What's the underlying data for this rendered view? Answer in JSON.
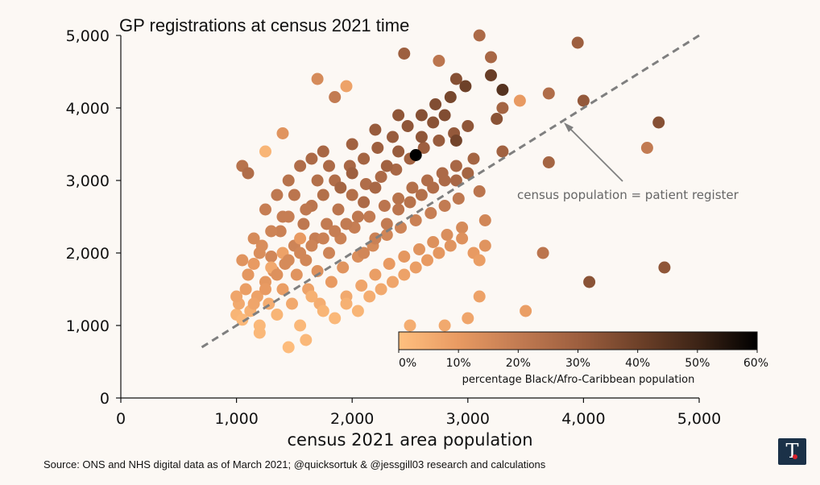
{
  "chart_data": {
    "type": "scatter",
    "title": "GP registrations at census 2021 time",
    "xlabel": "census 2021 area population",
    "ylabel": "",
    "xlim": [
      0,
      5000
    ],
    "ylim": [
      0,
      5000
    ],
    "x_ticks": [
      "0",
      "1,000",
      "2,000",
      "3,000",
      "4,000",
      "5,000"
    ],
    "y_ticks": [
      "0",
      "1,000",
      "2,000",
      "3,000",
      "4,000",
      "5,000"
    ],
    "x_tick_values": [
      0,
      1000,
      2000,
      3000,
      4000,
      5000
    ],
    "y_tick_values": [
      0,
      1000,
      2000,
      3000,
      4000,
      5000
    ],
    "reference_line": {
      "label": "census population = patient register",
      "x": [
        700,
        5000
      ],
      "y": [
        700,
        5000
      ],
      "style": "dashed",
      "color": "#7f7f7f"
    },
    "colorbar": {
      "label": "percentage Black/Afro-Caribbean population",
      "tick_labels": [
        "0%",
        "10%",
        "20%",
        "30%",
        "40%",
        "50%",
        "60%"
      ],
      "tick_values": [
        0,
        10,
        20,
        30,
        40,
        50,
        60
      ],
      "range": [
        0,
        60
      ],
      "colors": [
        "#ffc07f",
        "#e89a62",
        "#c27b52",
        "#9d5f3f",
        "#6e4129",
        "#3d2416",
        "#000000"
      ]
    },
    "series": [
      {
        "name": "areas",
        "points": [
          [
            1000,
            1150,
            3
          ],
          [
            1020,
            1300,
            6
          ],
          [
            1050,
            1080,
            2
          ],
          [
            1080,
            1500,
            9
          ],
          [
            1100,
            1700,
            12
          ],
          [
            1120,
            1200,
            4
          ],
          [
            1150,
            1850,
            10
          ],
          [
            1180,
            1400,
            8
          ],
          [
            1200,
            1000,
            2
          ],
          [
            1220,
            2100,
            14
          ],
          [
            1250,
            1600,
            11
          ],
          [
            1280,
            1300,
            5
          ],
          [
            1300,
            1950,
            16
          ],
          [
            1320,
            1750,
            13
          ],
          [
            1350,
            1150,
            3
          ],
          [
            1380,
            2300,
            18
          ],
          [
            1400,
            1500,
            9
          ],
          [
            1420,
            1850,
            15
          ],
          [
            1450,
            2500,
            19
          ],
          [
            1480,
            1300,
            6
          ],
          [
            1500,
            2100,
            17
          ],
          [
            1520,
            1700,
            12
          ],
          [
            1550,
            1000,
            2
          ],
          [
            1580,
            2400,
            21
          ],
          [
            1600,
            1900,
            16
          ],
          [
            1620,
            1500,
            8
          ],
          [
            1650,
            2650,
            22
          ],
          [
            1680,
            2200,
            19
          ],
          [
            1700,
            1750,
            13
          ],
          [
            1720,
            1300,
            5
          ],
          [
            1750,
            2800,
            24
          ],
          [
            1780,
            2400,
            20
          ],
          [
            1800,
            2000,
            17
          ],
          [
            1820,
            1600,
            10
          ],
          [
            1850,
            3000,
            25
          ],
          [
            1880,
            2600,
            22
          ],
          [
            1900,
            2200,
            18
          ],
          [
            1920,
            1800,
            12
          ],
          [
            1950,
            1400,
            6
          ],
          [
            1980,
            3200,
            27
          ],
          [
            2000,
            2800,
            24
          ],
          [
            2020,
            2350,
            19
          ],
          [
            2050,
            1950,
            14
          ],
          [
            2080,
            1550,
            7
          ],
          [
            2100,
            3300,
            28
          ],
          [
            2120,
            2950,
            25
          ],
          [
            2150,
            2500,
            20
          ],
          [
            2180,
            2100,
            15
          ],
          [
            2200,
            1700,
            9
          ],
          [
            2220,
            3450,
            30
          ],
          [
            2250,
            3050,
            26
          ],
          [
            2280,
            2650,
            22
          ],
          [
            2300,
            2250,
            16
          ],
          [
            2320,
            1850,
            10
          ],
          [
            2350,
            3600,
            31
          ],
          [
            2380,
            3150,
            27
          ],
          [
            2400,
            2750,
            23
          ],
          [
            2420,
            2350,
            17
          ],
          [
            2450,
            1950,
            11
          ],
          [
            2480,
            3750,
            33
          ],
          [
            2500,
            3300,
            29
          ],
          [
            2520,
            2900,
            24
          ],
          [
            2550,
            2450,
            18
          ],
          [
            2580,
            2050,
            12
          ],
          [
            2600,
            3900,
            35
          ],
          [
            2620,
            3450,
            30
          ],
          [
            2650,
            3000,
            25
          ],
          [
            2680,
            2550,
            19
          ],
          [
            2700,
            2150,
            13
          ],
          [
            2720,
            4050,
            36
          ],
          [
            2750,
            3550,
            31
          ],
          [
            2780,
            3100,
            26
          ],
          [
            2800,
            2650,
            20
          ],
          [
            2820,
            2250,
            14
          ],
          [
            2850,
            4150,
            38
          ],
          [
            2880,
            3650,
            32
          ],
          [
            2900,
            3200,
            27
          ],
          [
            2920,
            2750,
            21
          ],
          [
            2950,
            2350,
            15
          ],
          [
            2980,
            4300,
            40
          ],
          [
            3000,
            3750,
            33
          ],
          [
            3050,
            3300,
            28
          ],
          [
            3100,
            2850,
            22
          ],
          [
            3150,
            2450,
            16
          ],
          [
            3200,
            4450,
            41
          ],
          [
            3250,
            3850,
            34
          ],
          [
            3300,
            3400,
            29
          ],
          [
            3050,
            2000,
            10
          ],
          [
            3100,
            1900,
            9
          ],
          [
            3150,
            2100,
            12
          ],
          [
            2500,
            1000,
            5
          ],
          [
            2800,
            1000,
            6
          ],
          [
            3000,
            1100,
            7
          ],
          [
            3100,
            1400,
            8
          ],
          [
            3500,
            1200,
            9
          ],
          [
            3650,
            2000,
            22
          ],
          [
            3700,
            4200,
            25
          ],
          [
            3700,
            3250,
            28
          ],
          [
            3950,
            4900,
            30
          ],
          [
            4000,
            4100,
            32
          ],
          [
            4050,
            1600,
            34
          ],
          [
            4550,
            3450,
            20
          ],
          [
            4650,
            3800,
            35
          ],
          [
            4700,
            1800,
            33
          ],
          [
            3100,
            5000,
            26
          ],
          [
            3200,
            4700,
            27
          ],
          [
            3300,
            4000,
            28
          ],
          [
            3450,
            4100,
            10
          ],
          [
            2550,
            3350,
            60
          ],
          [
            3300,
            4250,
            45
          ],
          [
            2750,
            4650,
            22
          ],
          [
            2450,
            4750,
            30
          ],
          [
            1950,
            4300,
            8
          ],
          [
            1850,
            4150,
            20
          ],
          [
            1700,
            4400,
            15
          ],
          [
            1400,
            3650,
            12
          ],
          [
            1250,
            3400,
            3
          ],
          [
            1050,
            3200,
            23
          ],
          [
            1100,
            3100,
            25
          ],
          [
            2900,
            4400,
            35
          ],
          [
            1300,
            1800,
            6
          ],
          [
            1400,
            2000,
            8
          ],
          [
            1550,
            2200,
            10
          ],
          [
            1650,
            1400,
            4
          ],
          [
            1750,
            1200,
            3
          ],
          [
            1850,
            1100,
            2
          ],
          [
            1950,
            1300,
            4
          ],
          [
            2050,
            1200,
            3
          ],
          [
            2150,
            1400,
            5
          ],
          [
            2250,
            1500,
            6
          ],
          [
            2350,
            1600,
            7
          ],
          [
            2450,
            1700,
            8
          ],
          [
            2550,
            1800,
            9
          ],
          [
            2650,
            1900,
            10
          ],
          [
            2750,
            2000,
            11
          ],
          [
            2850,
            2100,
            12
          ],
          [
            2950,
            2200,
            13
          ],
          [
            1600,
            800,
            2
          ],
          [
            1450,
            700,
            1
          ],
          [
            1200,
            900,
            2
          ],
          [
            1900,
            2900,
            28
          ],
          [
            2000,
            3100,
            30
          ],
          [
            2100,
            2700,
            26
          ],
          [
            2200,
            2900,
            27
          ],
          [
            2300,
            3200,
            29
          ],
          [
            2400,
            3400,
            31
          ],
          [
            2600,
            3600,
            33
          ],
          [
            2700,
            3800,
            34
          ],
          [
            2800,
            3900,
            36
          ],
          [
            2900,
            3550,
            39
          ],
          [
            1600,
            2600,
            21
          ],
          [
            1700,
            3000,
            24
          ],
          [
            1800,
            3200,
            26
          ],
          [
            2000,
            3500,
            29
          ],
          [
            2200,
            3700,
            31
          ],
          [
            2400,
            3900,
            33
          ],
          [
            1500,
            2800,
            22
          ],
          [
            1400,
            2500,
            19
          ],
          [
            1300,
            2300,
            17
          ],
          [
            1200,
            2000,
            14
          ],
          [
            1100,
            1700,
            11
          ],
          [
            1000,
            1400,
            7
          ],
          [
            1050,
            1900,
            12
          ],
          [
            1150,
            2200,
            15
          ],
          [
            1250,
            2600,
            19
          ],
          [
            1350,
            2800,
            21
          ],
          [
            1450,
            3000,
            23
          ],
          [
            1550,
            3200,
            25
          ],
          [
            1650,
            3300,
            26
          ],
          [
            1750,
            3400,
            27
          ],
          [
            2100,
            2000,
            16
          ],
          [
            2200,
            2200,
            18
          ],
          [
            2300,
            2400,
            20
          ],
          [
            2400,
            2600,
            22
          ],
          [
            2500,
            2700,
            23
          ],
          [
            2600,
            2800,
            24
          ],
          [
            2700,
            2900,
            25
          ],
          [
            2800,
            3000,
            26
          ],
          [
            2900,
            3000,
            27
          ],
          [
            3000,
            3100,
            28
          ],
          [
            2050,
            2500,
            21
          ],
          [
            1950,
            2400,
            20
          ],
          [
            1850,
            2300,
            19
          ],
          [
            1750,
            2200,
            18
          ],
          [
            1650,
            2100,
            17
          ],
          [
            1550,
            2000,
            16
          ],
          [
            1450,
            1900,
            15
          ],
          [
            1350,
            1700,
            13
          ],
          [
            1250,
            1500,
            10
          ],
          [
            1150,
            1300,
            7
          ]
        ]
      }
    ]
  },
  "source": "Source: ONS and NHS digital data as of March 2021; @quicksortuk & @jessgill03 research and calculations",
  "logo": {
    "glyph": "T",
    "name": "publisher logo"
  },
  "colors": {
    "background": "#fcf8f4",
    "reference_line": "#7f7f7f",
    "logo_bg": "#1b3148",
    "logo_dot": "#d9232e"
  }
}
